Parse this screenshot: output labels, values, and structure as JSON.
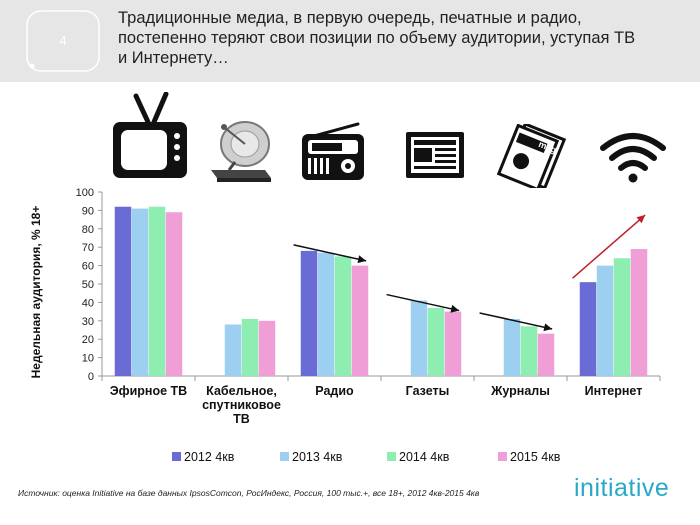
{
  "slide": {
    "number": "4",
    "title_lines": [
      "Традиционные медиа, в первую очередь, печатные и радио,",
      "постепенно теряют свои позиции по объему аудитории, уступая ТВ",
      "и Интернету…"
    ]
  },
  "icons": [
    "tv-icon",
    "satellite-dish-icon",
    "radio-icon",
    "newspaper-icon",
    "magazine-icon",
    "wifi-icon"
  ],
  "icon_texts": {
    "magazine": "mag"
  },
  "chart_data": {
    "type": "bar",
    "ylabel": "Недельная аудитория, % 18+",
    "ylim": [
      0,
      100
    ],
    "yticks": [
      0,
      10,
      20,
      30,
      40,
      50,
      60,
      70,
      80,
      90,
      100
    ],
    "categories": [
      [
        "Эфирное ТВ"
      ],
      [
        "Кабельное,",
        "спутниковое",
        "ТВ"
      ],
      [
        "Радио"
      ],
      [
        "Газеты"
      ],
      [
        "Журналы"
      ],
      [
        "Интернет"
      ]
    ],
    "series": [
      {
        "name": "2012 4кв",
        "color": "#6b6bd6",
        "values": [
          92,
          null,
          68,
          null,
          null,
          51
        ]
      },
      {
        "name": "2013 4кв",
        "color": "#9dd0f0",
        "values": [
          91,
          28,
          67,
          41,
          31,
          60
        ]
      },
      {
        "name": "2014 4кв",
        "color": "#8eedb0",
        "values": [
          92,
          31,
          65,
          37,
          27,
          64
        ]
      },
      {
        "name": "2015 4кв",
        "color": "#ef9fd5",
        "values": [
          89,
          30,
          60,
          35,
          23,
          69
        ]
      }
    ],
    "trend_arrows": [
      {
        "category_index": 2,
        "direction": "down",
        "color": "#111111"
      },
      {
        "category_index": 3,
        "direction": "down",
        "color": "#111111"
      },
      {
        "category_index": 4,
        "direction": "down",
        "color": "#111111"
      },
      {
        "category_index": 5,
        "direction": "up",
        "color": "#c0202a"
      }
    ],
    "legend_position": "bottom"
  },
  "footer": {
    "source": "Источник: оценка Initiative на базе данных IpsosComcon, РосИндекс, Россия, 100 тыс.+, все 18+, 2012 4кв-2015 4кв",
    "logo": "initiative"
  }
}
